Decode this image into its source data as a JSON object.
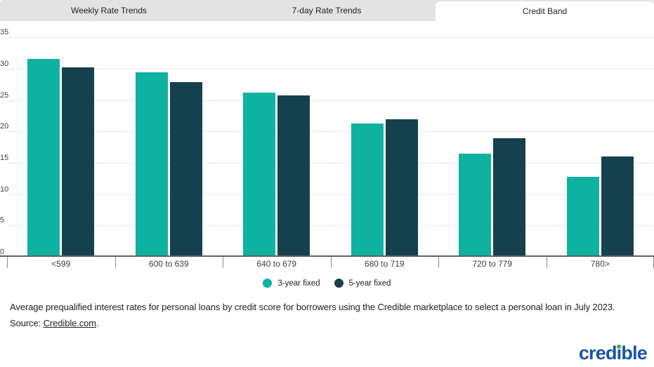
{
  "tabs": [
    {
      "label": "Weekly Rate Trends",
      "active": false
    },
    {
      "label": "7-day Rate Trends",
      "active": false
    },
    {
      "label": "Credit Band",
      "active": true
    }
  ],
  "chart_data": {
    "type": "bar",
    "title": "",
    "xlabel": "",
    "ylabel": "",
    "categories": [
      "<599",
      "600 to 639",
      "640 to 679",
      "680 to 719",
      "720 to 779",
      "780>"
    ],
    "series": [
      {
        "name": "3-year fixed",
        "color": "#0db3a0",
        "values": [
          31.5,
          29.4,
          26.2,
          21.3,
          16.4,
          12.8
        ]
      },
      {
        "name": "5-year fixed",
        "color": "#15414f",
        "values": [
          30.2,
          27.8,
          25.7,
          21.9,
          18.9,
          16.0
        ]
      }
    ],
    "ylim": [
      0,
      35
    ],
    "yticks": [
      0,
      5,
      10,
      15,
      20,
      25,
      30,
      35
    ],
    "grid": "horizontal",
    "legend_position": "bottom-center"
  },
  "caption": {
    "line1": "Average prequalified interest rates for personal loans by credit score for borrowers using the Credible marketplace to select a personal loan in July 2023.",
    "source_prefix": "Source: ",
    "source_link": "Credible.com",
    "source_suffix": "."
  },
  "logo": {
    "full_text": "credible",
    "prefix": "cred",
    "i_dotless": "ı",
    "suffix": "ble"
  },
  "colors": {
    "teal": "#0db3a0",
    "navy": "#15414f",
    "tab_bg": "#e3e3e3",
    "active_tab_bg": "#ffffff",
    "gridline": "#e7e7e7",
    "axis": "#616161",
    "logo_blue": "#1b54a4",
    "logo_green": "#3fae49"
  }
}
